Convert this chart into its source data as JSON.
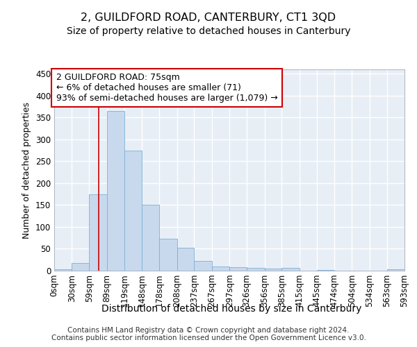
{
  "title": "2, GUILDFORD ROAD, CANTERBURY, CT1 3QD",
  "subtitle": "Size of property relative to detached houses in Canterbury",
  "xlabel": "Distribution of detached houses by size in Canterbury",
  "ylabel": "Number of detached properties",
  "bar_color": "#c8d9ed",
  "bar_edge_color": "#7bafd4",
  "background_color": "#e8eef6",
  "grid_color": "#ffffff",
  "vline_color": "#cc0000",
  "vline_x": 75,
  "annotation_line1": "2 GUILDFORD ROAD: 75sqm",
  "annotation_line2": "← 6% of detached houses are smaller (71)",
  "annotation_line3": "93% of semi-detached houses are larger (1,079) →",
  "annotation_box_color": "#ffffff",
  "annotation_box_edge": "#cc0000",
  "bin_edges": [
    0,
    30,
    59,
    89,
    119,
    148,
    178,
    208,
    237,
    267,
    297,
    326,
    356,
    385,
    415,
    445,
    474,
    504,
    534,
    563,
    593
  ],
  "bar_heights": [
    3,
    18,
    175,
    365,
    275,
    150,
    73,
    53,
    23,
    10,
    8,
    6,
    5,
    7,
    0,
    2,
    0,
    0,
    0,
    3
  ],
  "ylim": [
    0,
    460
  ],
  "yticks": [
    0,
    50,
    100,
    150,
    200,
    250,
    300,
    350,
    400,
    450
  ],
  "footer_text": "Contains HM Land Registry data © Crown copyright and database right 2024.\nContains public sector information licensed under the Open Government Licence v3.0.",
  "title_fontsize": 11.5,
  "subtitle_fontsize": 10,
  "xlabel_fontsize": 10,
  "ylabel_fontsize": 9,
  "tick_fontsize": 8.5,
  "annotation_fontsize": 9,
  "footer_fontsize": 7.5
}
